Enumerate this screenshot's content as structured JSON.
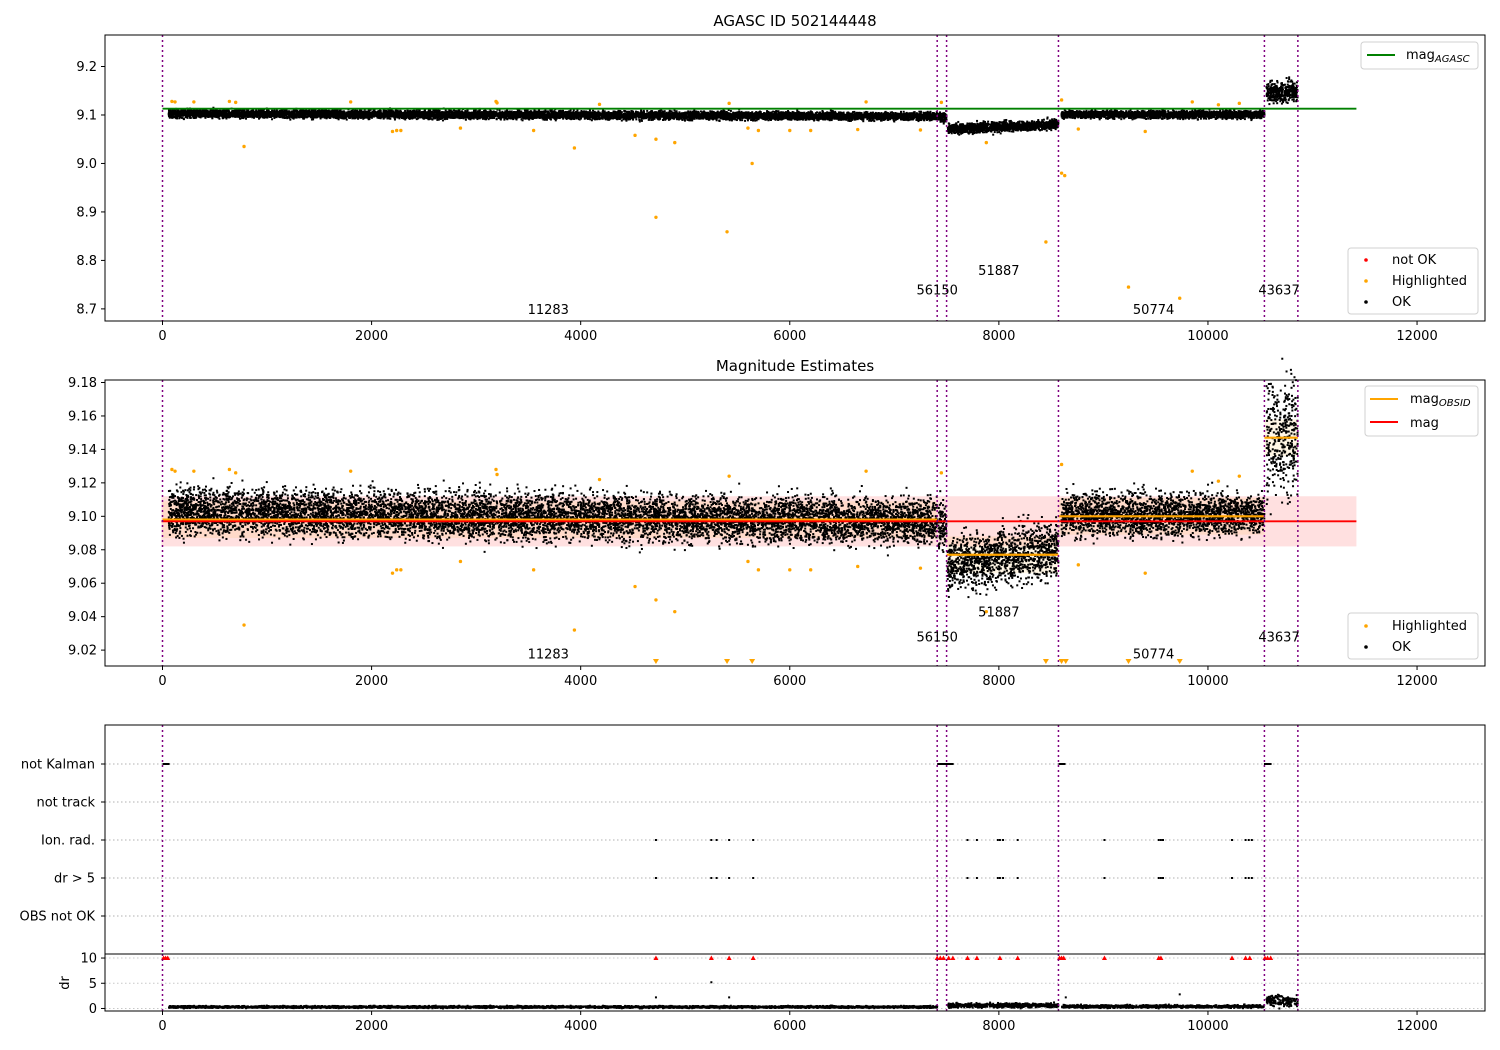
{
  "chart_data": [
    {
      "type": "scatter",
      "title": "AGASC ID 502144448",
      "xlim": [
        -550,
        12650
      ],
      "ylim": [
        8.675,
        9.265
      ],
      "xticks": [
        0,
        2000,
        4000,
        6000,
        8000,
        10000,
        12000
      ],
      "yticks": [
        8.7,
        8.8,
        8.9,
        9.0,
        9.1,
        9.2
      ],
      "ytick_labels": [
        "8.7",
        "8.8",
        "8.9",
        "9.0",
        "9.1",
        "9.2"
      ],
      "reference_line": {
        "name": "mag$_{AGASC}$",
        "label_main": "mag",
        "label_sub": "AGASC",
        "y": 9.113,
        "x_range": [
          0,
          11420
        ],
        "color": "#008000"
      },
      "obsid_boundaries": [
        0,
        7410,
        7500,
        8570,
        10540,
        10860
      ],
      "obsid_labels": [
        {
          "text": "11283",
          "x": 3690,
          "y": 8.7
        },
        {
          "text": "56150",
          "x": 7410,
          "y": 8.74
        },
        {
          "text": "51887",
          "x": 8000,
          "y": 8.78
        },
        {
          "text": "50774",
          "x": 9480,
          "y": 8.7
        },
        {
          "text": "43637",
          "x": 10680,
          "y": 8.74
        }
      ],
      "segments": [
        {
          "x": [
            60,
            7410
          ],
          "mean": 9.1,
          "spread": 0.011,
          "trend": -0.003
        },
        {
          "x": [
            7420,
            7500
          ],
          "mean": 9.095,
          "spread": 0.012,
          "trend": 0
        },
        {
          "x": [
            7510,
            8570
          ],
          "mean": 9.076,
          "spread": 0.013,
          "trend": 0.005
        },
        {
          "x": [
            8600,
            10540
          ],
          "mean": 9.101,
          "spread": 0.01,
          "trend": 0
        },
        {
          "x": [
            10560,
            10860
          ],
          "mean": 9.147,
          "spread": 0.028,
          "trend": 0
        }
      ],
      "highlighted_points": [
        [
          90,
          9.128
        ],
        [
          120,
          9.127
        ],
        [
          300,
          9.127
        ],
        [
          780,
          9.035
        ],
        [
          640,
          9.128
        ],
        [
          700,
          9.126
        ],
        [
          1800,
          9.127
        ],
        [
          2200,
          9.066
        ],
        [
          2240,
          9.068
        ],
        [
          2280,
          9.068
        ],
        [
          2850,
          9.073
        ],
        [
          3190,
          9.128
        ],
        [
          3200,
          9.125
        ],
        [
          3550,
          9.068
        ],
        [
          3940,
          9.032
        ],
        [
          4180,
          9.122
        ],
        [
          4520,
          9.058
        ],
        [
          4720,
          9.05
        ],
        [
          4720,
          8.889
        ],
        [
          4900,
          9.043
        ],
        [
          5400,
          8.859
        ],
        [
          5420,
          9.124
        ],
        [
          5600,
          9.073
        ],
        [
          5640,
          9.0
        ],
        [
          5700,
          9.068
        ],
        [
          6000,
          9.068
        ],
        [
          6200,
          9.068
        ],
        [
          6650,
          9.07
        ],
        [
          6730,
          9.127
        ],
        [
          7250,
          9.069
        ],
        [
          7450,
          9.126
        ],
        [
          7880,
          9.043
        ],
        [
          8450,
          8.838
        ],
        [
          8600,
          8.98
        ],
        [
          8630,
          8.975
        ],
        [
          8600,
          9.131
        ],
        [
          8760,
          9.071
        ],
        [
          9240,
          8.745
        ],
        [
          9400,
          9.066
        ],
        [
          9730,
          8.722
        ],
        [
          9850,
          9.127
        ],
        [
          10100,
          9.121
        ],
        [
          10300,
          9.124
        ]
      ],
      "legend": [
        {
          "label": "not OK",
          "color": "#ff0000"
        },
        {
          "label": "Highlighted",
          "color": "#ffa500"
        },
        {
          "label": "OK",
          "color": "#000000"
        }
      ],
      "legend_position": "lower-right",
      "reference_legend_position": "upper-right"
    },
    {
      "type": "scatter",
      "title": "Magnitude Estimates",
      "xlim": [
        -550,
        12650
      ],
      "ylim": [
        9.0105,
        9.1815
      ],
      "xticks": [
        0,
        2000,
        4000,
        6000,
        8000,
        10000,
        12000
      ],
      "yticks": [
        9.02,
        9.04,
        9.06,
        9.08,
        9.1,
        9.12,
        9.14,
        9.16,
        9.18
      ],
      "ytick_labels": [
        "9.02",
        "9.04",
        "9.06",
        "9.08",
        "9.10",
        "9.12",
        "9.14",
        "9.16",
        "9.18"
      ],
      "mag": {
        "name": "mag",
        "y": 9.097,
        "band": [
          9.082,
          9.112
        ],
        "x_range": [
          -10,
          11420
        ],
        "color": "#ff0000"
      },
      "mag_obsid": {
        "name": "mag$_{OBSID}$",
        "label_main": "mag",
        "label_sub": "OBSID",
        "color": "#ffa500",
        "values": [
          {
            "x": [
              0,
              7410
            ],
            "y": 9.098
          },
          {
            "x": [
              7500,
              8570
            ],
            "y": 9.077
          },
          {
            "x": [
              8570,
              10540
            ],
            "y": 9.1
          },
          {
            "x": [
              10540,
              10860
            ],
            "y": 9.147
          }
        ]
      },
      "obsid_boundaries": [
        0,
        7410,
        7500,
        8570,
        10540,
        10860
      ],
      "obsid_labels": [
        {
          "text": "11283",
          "x": 3690,
          "y": 9.018
        },
        {
          "text": "56150",
          "x": 7410,
          "y": 9.028
        },
        {
          "text": "51887",
          "x": 8000,
          "y": 9.043
        },
        {
          "text": "50774",
          "x": 9480,
          "y": 9.018
        },
        {
          "text": "43637",
          "x": 10680,
          "y": 9.028
        }
      ],
      "clipped_points_x": [
        4720,
        5400,
        5640,
        8450,
        8600,
        8640,
        9240,
        9730
      ],
      "legend": [
        {
          "label": "Highlighted",
          "color": "#ffa500"
        },
        {
          "label": "OK",
          "color": "#000000"
        }
      ],
      "legend_position": "lower-right"
    },
    {
      "type": "scatter",
      "flags": [
        "not Kalman",
        "not track",
        "Ion. rad.",
        "dr > 5",
        "OBS not OK"
      ],
      "xlim": [
        -550,
        12650
      ],
      "obsid_boundaries": [
        0,
        7410,
        7500,
        8570,
        10540,
        10860
      ],
      "flag_points": {
        "not Kalman": [
          [
            10,
            60
          ],
          [
            7420,
            7500
          ],
          [
            7510,
            7560
          ],
          [
            8580,
            8630
          ],
          [
            10545,
            10600
          ]
        ],
        "Ion. rad.": [
          4720,
          5250,
          5300,
          5420,
          5650,
          7700,
          7790,
          7990,
          8010,
          8040,
          8180,
          9010,
          9530,
          9550,
          9570,
          10230,
          10360,
          10390,
          10420
        ],
        "dr > 5": [
          4720,
          5250,
          5300,
          5420,
          5650,
          7700,
          7790,
          7990,
          8010,
          8040,
          8180,
          9010,
          9530,
          9550,
          9570,
          10230,
          10360,
          10390,
          10420
        ]
      },
      "dr": {
        "ylabel": "dr",
        "ylim": [
          -0.5,
          10.8
        ],
        "yticks": [
          0,
          5,
          10
        ],
        "ytick_labels": [
          "0",
          "5",
          "10"
        ],
        "capped_at_10_x": [
          10,
          30,
          50,
          4720,
          5250,
          5420,
          5650,
          7410,
          7440,
          7470,
          7520,
          7560,
          7700,
          7790,
          8010,
          8180,
          8580,
          8600,
          8620,
          9010,
          9530,
          9550,
          10230,
          10360,
          10400,
          10545,
          10570,
          10600
        ],
        "outliers": [
          [
            4720,
            2.2
          ],
          [
            5250,
            5.2
          ],
          [
            5420,
            2.2
          ],
          [
            8640,
            2.2
          ],
          [
            9730,
            2.8
          ]
        ],
        "segments": [
          {
            "x": [
              60,
              7410
            ],
            "mean": 0.3
          },
          {
            "x": [
              7510,
              8570
            ],
            "mean": 0.6
          },
          {
            "x": [
              8600,
              10540
            ],
            "mean": 0.4
          },
          {
            "x": [
              10560,
              10860
            ],
            "mean": 1.5
          }
        ]
      }
    }
  ]
}
